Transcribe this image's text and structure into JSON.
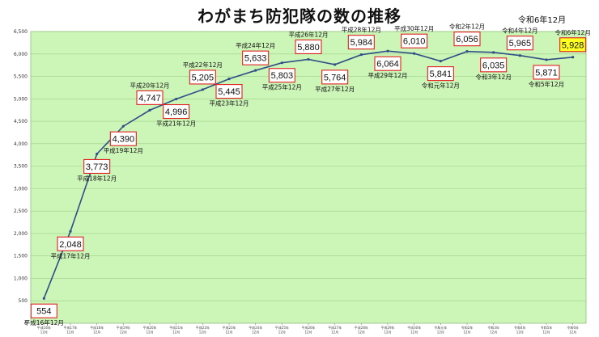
{
  "chart_data": {
    "type": "line",
    "title": "わがまち防犯隊の数の推移",
    "latest_note": "令和6年12月",
    "ylim": [
      0,
      6500
    ],
    "ytick_step": 500,
    "grid": true,
    "x_tick_labels": [
      [
        "平成16年",
        "12月"
      ],
      [
        "平成17年",
        "12月"
      ],
      [
        "平成18年",
        "12月"
      ],
      [
        "平成19年",
        "12月"
      ],
      [
        "平成20年",
        "12月"
      ],
      [
        "平成21年",
        "12月"
      ],
      [
        "平成22年",
        "12月"
      ],
      [
        "平成23年",
        "12月"
      ],
      [
        "平成24年",
        "12月"
      ],
      [
        "平成25年",
        "12月"
      ],
      [
        "平成26年",
        "12月"
      ],
      [
        "平成27年",
        "12月"
      ],
      [
        "平成28年",
        "12月"
      ],
      [
        "平成29年",
        "12月"
      ],
      [
        "平成30年",
        "12月"
      ],
      [
        "令和元年",
        "12月"
      ],
      [
        "令和2年",
        "12月"
      ],
      [
        "令和3年",
        "12月"
      ],
      [
        "令和4年",
        "12月"
      ],
      [
        "令和5年",
        "12月"
      ],
      [
        "令和6年",
        "12月"
      ]
    ],
    "point_labels": [
      "平成16年12月",
      "平成17年12月",
      "平成18年12月",
      "平成19年12月",
      "平成20年12月",
      "平成21年12月",
      "平成22年12月",
      "平成23年12月",
      "平成24年12月",
      "平成25年12月",
      "平成26年12月",
      "平成27年12月",
      "平成28年12月",
      "平成29年12月",
      "平成30年12月",
      "令和元年12月",
      "令和2年12月",
      "令和3年12月",
      "令和4年12月",
      "令和5年12月",
      "令和6年12月"
    ],
    "value_labels": [
      "554",
      "2,048",
      "3,773",
      "4,390",
      "4,747",
      "4,996",
      "5,205",
      "5,445",
      "5,633",
      "5,803",
      "5,880",
      "5,764",
      "5,984",
      "6,064",
      "6,010",
      "5,841",
      "6,056",
      "6,035",
      "5,965",
      "5,871",
      "5,928"
    ],
    "values": [
      554,
      2048,
      3773,
      4390,
      4747,
      4996,
      5205,
      5445,
      5633,
      5803,
      5880,
      5764,
      5984,
      6064,
      6010,
      5841,
      6056,
      6035,
      5965,
      5871,
      5928
    ],
    "label_positions": [
      "below",
      "below",
      "below",
      "below",
      "above",
      "below",
      "above",
      "below",
      "above",
      "below",
      "above",
      "below",
      "above",
      "below",
      "above",
      "below",
      "above",
      "below",
      "above",
      "below",
      "above"
    ],
    "highlight_index": 20,
    "colors": {
      "plot_bg": "#ccf5b8",
      "grid": "#9ccf88",
      "line": "#2f4f86",
      "label_border": "#e02020",
      "label_bg": "#ffffff",
      "highlight_bg": "#ffff22"
    }
  }
}
